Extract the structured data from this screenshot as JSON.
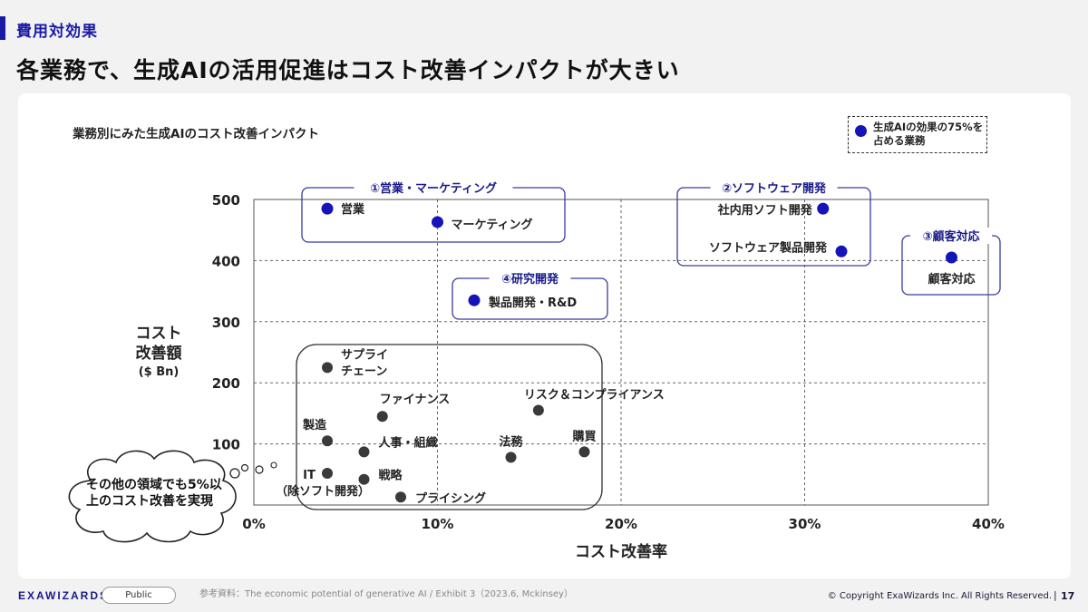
{
  "header": {
    "section_label": "費用対効果",
    "title": "各業務で、生成AIの活用促進はコスト改善インパクトが大きい"
  },
  "legend": {
    "label": "生成AIの効果の75%を占める業務",
    "color": "#1414b8"
  },
  "callout": {
    "text": "その他の領域でも5%以上のコスト改善を実現"
  },
  "footer": {
    "brand": "EXAWIZARDS",
    "badge": "Public",
    "source": "参考資料：The economic potential of generative AI / Exhibit 3（2023.6, Mckinsey）",
    "copyright": "© Copyright ExaWizards Inc. All Rights Reserved.",
    "separator": "|",
    "page": "17"
  },
  "colors": {
    "primary_dot": "#1414b8",
    "other_dot": "#3a3a3a",
    "group_box": "#3a3aa0",
    "other_box": "#333333"
  },
  "chart_data": {
    "type": "scatter",
    "title": "業務別にみた生成AIのコスト改善インパクト",
    "xlabel": "コスト改善率",
    "ylabel": "コスト\n改善額",
    "ylabel_unit": "($ Bn)",
    "xlim": [
      0,
      40
    ],
    "ylim": [
      0,
      500
    ],
    "x_ticks": [
      0,
      10,
      20,
      30,
      40
    ],
    "x_tick_labels": [
      "0%",
      "10%",
      "20%",
      "30%",
      "40%"
    ],
    "y_ticks": [
      100,
      200,
      300,
      400,
      500
    ],
    "y_tick_labels": [
      "100",
      "200",
      "300",
      "400",
      "500"
    ],
    "grid": "dashed",
    "groups": [
      {
        "label": "①営業・マーケティング"
      },
      {
        "label": "②ソフトウェア開発"
      },
      {
        "label": "③顧客対応"
      },
      {
        "label": "④研究開発"
      }
    ],
    "points": [
      {
        "name": "営業",
        "x": 4,
        "y": 485,
        "primary": true
      },
      {
        "name": "マーケティング",
        "x": 10,
        "y": 463,
        "primary": true
      },
      {
        "name": "社内用ソフト開発",
        "x": 31,
        "y": 485,
        "primary": true
      },
      {
        "name": "ソフトウェア製品開発",
        "x": 32,
        "y": 415,
        "primary": true
      },
      {
        "name": "顧客対応",
        "x": 38,
        "y": 405,
        "primary": true
      },
      {
        "name": "製品開発・R&D",
        "x": 12,
        "y": 335,
        "primary": true
      },
      {
        "name": "サプライチェーン",
        "x": 4,
        "y": 225,
        "primary": false
      },
      {
        "name": "ファイナンス",
        "x": 7,
        "y": 145,
        "primary": false
      },
      {
        "name": "リスク＆コンプライアンス",
        "x": 15.5,
        "y": 155,
        "primary": false
      },
      {
        "name": "製造",
        "x": 4,
        "y": 105,
        "primary": false
      },
      {
        "name": "人事・組織",
        "x": 6,
        "y": 87,
        "primary": false
      },
      {
        "name": "法務",
        "x": 14,
        "y": 78,
        "primary": false
      },
      {
        "name": "購買",
        "x": 18,
        "y": 87,
        "primary": false
      },
      {
        "name": "IT（除ソフト開発）",
        "x": 4,
        "y": 52,
        "primary": false
      },
      {
        "name": "戦略",
        "x": 6,
        "y": 42,
        "primary": false
      },
      {
        "name": "プライシング",
        "x": 8,
        "y": 13,
        "primary": false
      }
    ]
  }
}
